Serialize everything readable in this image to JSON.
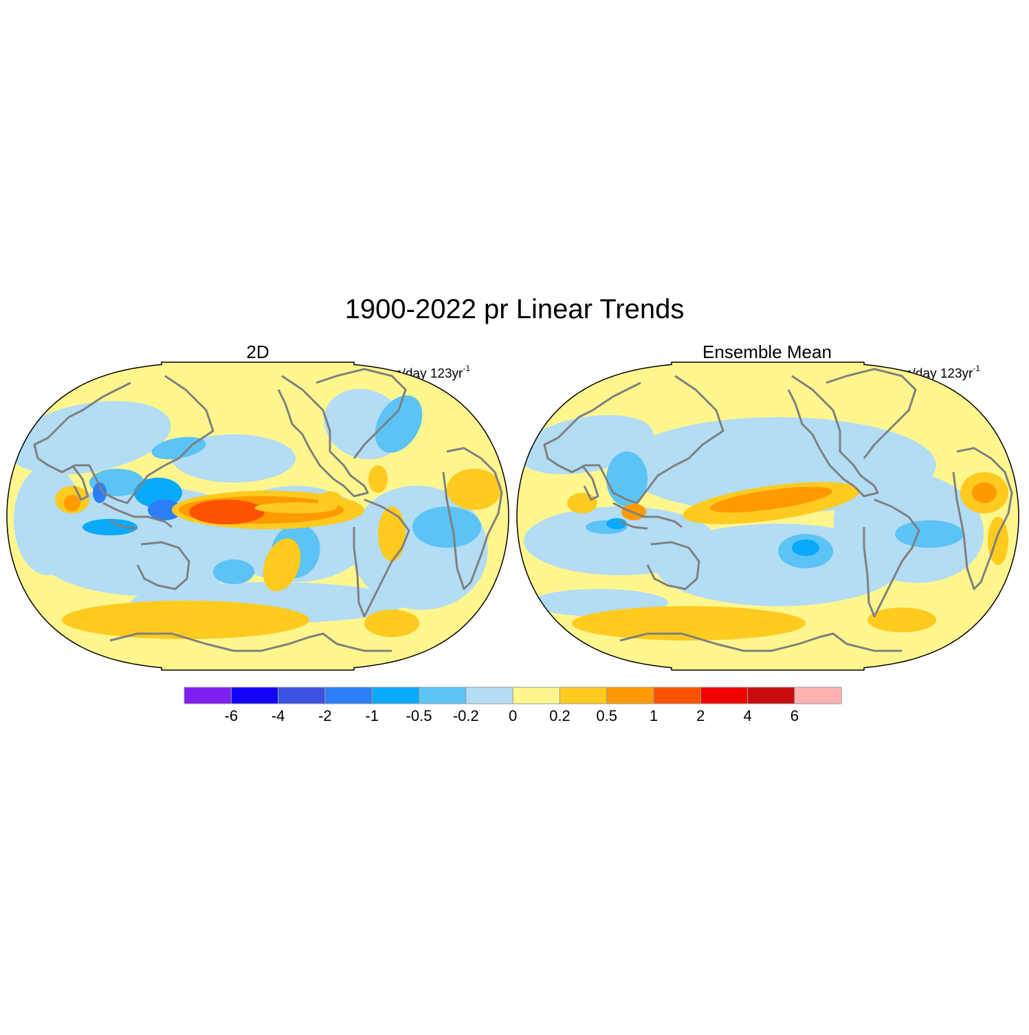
{
  "figure": {
    "title": "1900-2022 pr Linear Trends",
    "projection": "robinson",
    "panels": [
      {
        "title": "2D",
        "units": "mm/day 123yr",
        "units_exponent": "-1"
      },
      {
        "title": "Ensemble Mean",
        "units": "mm/day 123yr",
        "units_exponent": "-1"
      }
    ],
    "coastline_color": "#7f7f7f"
  },
  "colorbar": {
    "labels": [
      "-6",
      "-4",
      "-2",
      "-1",
      "-0.5",
      "-0.2",
      "0",
      "0.2",
      "0.5",
      "1",
      "2",
      "4",
      "6"
    ],
    "colors": [
      "#7e1ef0",
      "#1100fa",
      "#3b52e3",
      "#2b7ef5",
      "#0aaafa",
      "#5bc3f5",
      "#b3dcf5",
      "#fff68e",
      "#fecb1e",
      "#ff9a00",
      "#fe5200",
      "#f40000",
      "#c80c0c",
      "#ffb2b2"
    ]
  }
}
